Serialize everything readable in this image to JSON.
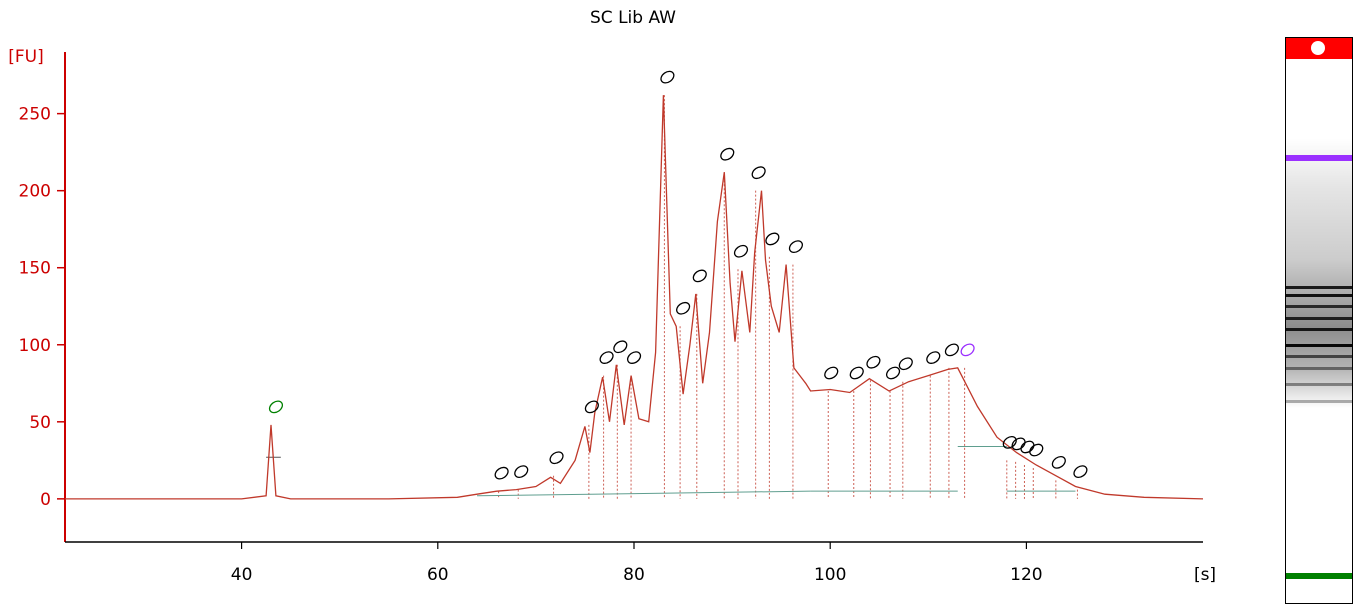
{
  "chart_data": {
    "type": "line",
    "title": "SC Lib AW",
    "ylabel": "[FU]",
    "xlabel": "[s]",
    "xlim": [
      22,
      138
    ],
    "ylim": [
      -28,
      290
    ],
    "x_ticks": [
      40,
      60,
      80,
      100,
      120
    ],
    "y_ticks": [
      0,
      50,
      100,
      150,
      200,
      250
    ],
    "colors": {
      "axis": "#cc0000",
      "trace": "#c0392b",
      "baseline": "#5f9e8f",
      "peak_marker": "#000000",
      "lower_marker": "#008000",
      "upper_marker": "#9b30ff"
    },
    "series": [
      {
        "x": [
          22,
          40,
          42.5,
          43,
          43.5,
          45,
          55,
          62,
          64,
          66,
          68,
          70,
          71.5,
          72.5,
          74,
          75,
          75.5,
          76,
          76.8,
          77.5,
          78.2,
          79,
          79.7,
          80.5,
          81.5,
          82.2,
          83,
          83.7,
          84.3,
          85,
          85.7,
          86.3,
          87,
          87.7,
          88.5,
          89.2,
          89.8,
          90.3,
          91,
          91.8,
          92.3,
          93,
          93.4,
          94,
          94.8,
          95.5,
          96.3,
          97.5,
          98,
          100,
          102,
          104,
          106,
          108,
          110,
          112,
          113,
          115,
          117,
          119,
          121,
          123,
          125,
          128,
          132,
          138
        ],
        "y": [
          0,
          0,
          2,
          48,
          2,
          0,
          0,
          1,
          3,
          5,
          6,
          8,
          14,
          10,
          25,
          47,
          30,
          56,
          79,
          50,
          87,
          48,
          80,
          52,
          50,
          95,
          262,
          120,
          112,
          68,
          100,
          133,
          75,
          108,
          180,
          212,
          140,
          102,
          148,
          108,
          160,
          200,
          155,
          125,
          108,
          152,
          85,
          75,
          70,
          71,
          69,
          78,
          70,
          76,
          80,
          84,
          85,
          60,
          40,
          30,
          22,
          15,
          8,
          3,
          1,
          0
        ]
      }
    ],
    "peaks": [
      {
        "x": 43.2,
        "y": 48,
        "marker": "lower"
      },
      {
        "x": 66.2,
        "y": 5,
        "marker": "peak"
      },
      {
        "x": 68.2,
        "y": 6,
        "marker": "peak"
      },
      {
        "x": 71.8,
        "y": 15,
        "marker": "peak"
      },
      {
        "x": 75.4,
        "y": 48,
        "marker": "peak"
      },
      {
        "x": 76.9,
        "y": 80,
        "marker": "peak"
      },
      {
        "x": 78.3,
        "y": 87,
        "marker": "peak"
      },
      {
        "x": 79.7,
        "y": 80,
        "marker": "peak"
      },
      {
        "x": 83.1,
        "y": 262,
        "marker": "peak"
      },
      {
        "x": 84.7,
        "y": 112,
        "marker": "peak"
      },
      {
        "x": 86.4,
        "y": 133,
        "marker": "peak"
      },
      {
        "x": 89.2,
        "y": 212,
        "marker": "peak"
      },
      {
        "x": 90.6,
        "y": 149,
        "marker": "peak"
      },
      {
        "x": 92.4,
        "y": 200,
        "marker": "peak"
      },
      {
        "x": 93.8,
        "y": 157,
        "marker": "peak"
      },
      {
        "x": 96.2,
        "y": 152,
        "marker": "peak"
      },
      {
        "x": 99.8,
        "y": 70,
        "marker": "peak"
      },
      {
        "x": 102.4,
        "y": 70,
        "marker": "peak"
      },
      {
        "x": 104.1,
        "y": 77,
        "marker": "peak"
      },
      {
        "x": 106.1,
        "y": 70,
        "marker": "peak"
      },
      {
        "x": 107.4,
        "y": 76,
        "marker": "peak"
      },
      {
        "x": 110.2,
        "y": 80,
        "marker": "peak"
      },
      {
        "x": 112.1,
        "y": 85,
        "marker": "peak"
      },
      {
        "x": 113.7,
        "y": 85,
        "marker": "upper"
      },
      {
        "x": 118.0,
        "y": 25,
        "marker": "peak"
      },
      {
        "x": 118.9,
        "y": 24,
        "marker": "peak"
      },
      {
        "x": 119.8,
        "y": 22,
        "marker": "peak"
      },
      {
        "x": 120.7,
        "y": 20,
        "marker": "peak"
      },
      {
        "x": 123.0,
        "y": 12,
        "marker": "peak"
      },
      {
        "x": 125.2,
        "y": 6,
        "marker": "peak"
      }
    ],
    "grid": false
  },
  "gel": {
    "top_band_color": "#ff0000",
    "upper_marker_color": "#9b30ff",
    "lower_marker_color": "#008000",
    "bands": [
      {
        "pos": 0.21,
        "intensity": 0.9,
        "marker": "upper"
      },
      {
        "pos": 0.96,
        "intensity": 0.95,
        "marker": "lower"
      },
      {
        "pos": 0.445,
        "intensity": 0.85
      },
      {
        "pos": 0.46,
        "intensity": 0.9
      },
      {
        "pos": 0.48,
        "intensity": 0.75
      },
      {
        "pos": 0.5,
        "intensity": 0.8
      },
      {
        "pos": 0.52,
        "intensity": 0.85
      },
      {
        "pos": 0.55,
        "intensity": 0.95
      },
      {
        "pos": 0.57,
        "intensity": 0.6
      },
      {
        "pos": 0.59,
        "intensity": 0.45
      },
      {
        "pos": 0.62,
        "intensity": 0.4
      },
      {
        "pos": 0.65,
        "intensity": 0.3
      }
    ]
  }
}
